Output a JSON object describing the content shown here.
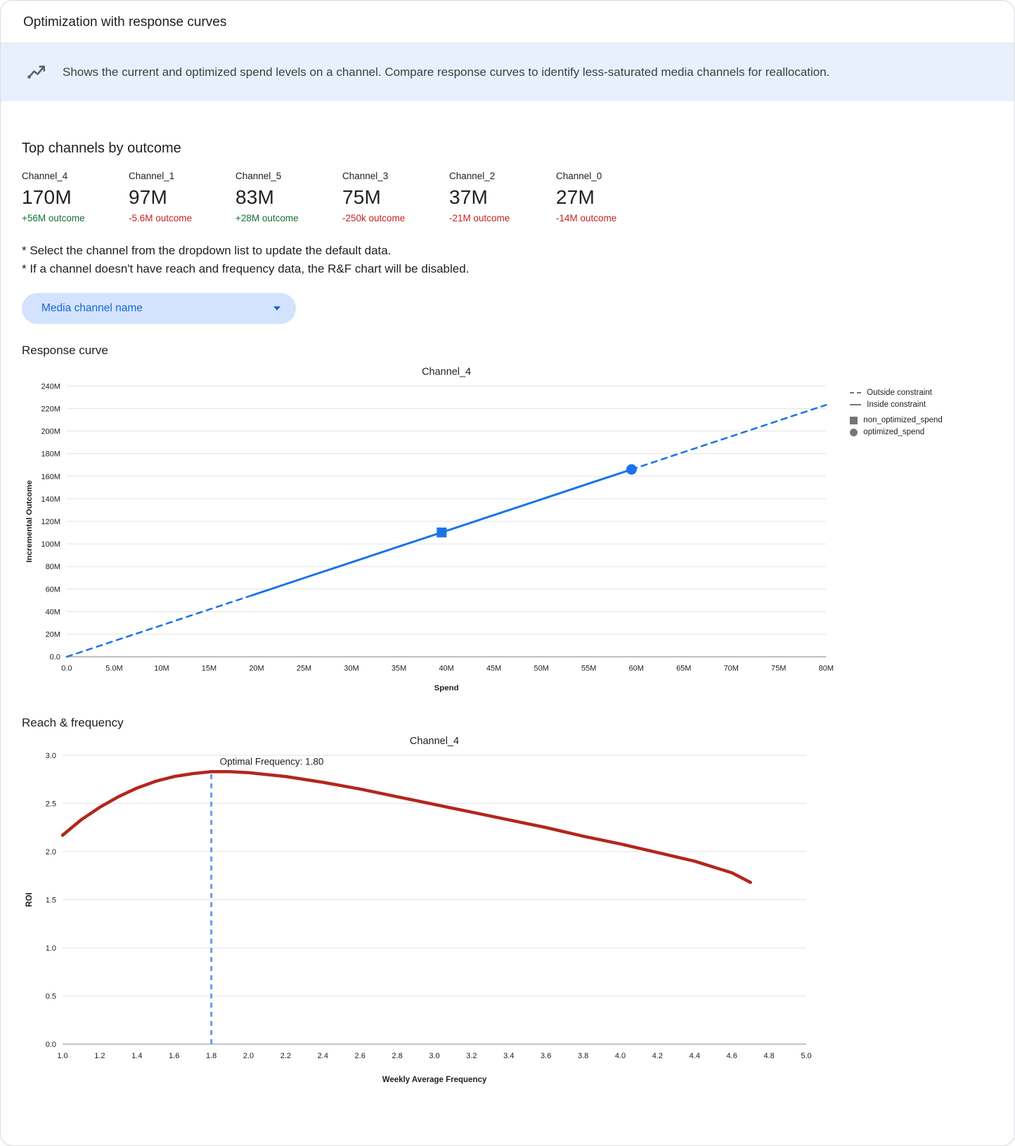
{
  "window": {
    "title": "Optimization with response curves"
  },
  "banner": {
    "text": "Shows the current and optimized spend levels on a channel. Compare response curves to identify less-saturated media channels for reallocation."
  },
  "top_channels": {
    "heading": "Top channels by outcome",
    "channels": [
      {
        "name": "Channel_4",
        "value": "170M",
        "delta": "+56M outcome",
        "direction": "positive"
      },
      {
        "name": "Channel_1",
        "value": "97M",
        "delta": "-5.6M outcome",
        "direction": "negative"
      },
      {
        "name": "Channel_5",
        "value": "83M",
        "delta": "+28M outcome",
        "direction": "positive"
      },
      {
        "name": "Channel_3",
        "value": "75M",
        "delta": "-250k outcome",
        "direction": "negative"
      },
      {
        "name": "Channel_2",
        "value": "37M",
        "delta": "-21M outcome",
        "direction": "negative"
      },
      {
        "name": "Channel_0",
        "value": "27M",
        "delta": "-14M outcome",
        "direction": "negative"
      }
    ]
  },
  "notes": [
    "* Select the channel from the dropdown list to update the default data.",
    "* If a channel doesn't have reach and frequency data, the R&F chart will be disabled."
  ],
  "dropdown": {
    "label": "Media channel name"
  },
  "sections": {
    "response_curve": "Response curve",
    "reach_frequency": "Reach & frequency"
  },
  "chart_data": [
    {
      "id": "response_curve",
      "type": "line",
      "title": "Channel_4",
      "xlabel": "Spend",
      "ylabel": "Incremental Outcome",
      "units": "millions",
      "xlim": [
        0,
        80
      ],
      "ylim": [
        0,
        240
      ],
      "x_ticks": {
        "values": [
          0,
          5,
          10,
          15,
          20,
          25,
          30,
          35,
          40,
          45,
          50,
          55,
          60,
          65,
          70,
          75,
          80
        ],
        "labels": [
          "0.0",
          "5.0M",
          "10M",
          "15M",
          "20M",
          "25M",
          "30M",
          "35M",
          "40M",
          "45M",
          "50M",
          "55M",
          "60M",
          "65M",
          "70M",
          "75M",
          "80M"
        ]
      },
      "y_ticks": {
        "values": [
          0,
          20,
          40,
          60,
          80,
          100,
          120,
          140,
          160,
          180,
          200,
          220,
          240
        ],
        "labels": [
          "0.0",
          "20M",
          "40M",
          "60M",
          "80M",
          "100M",
          "120M",
          "140M",
          "160M",
          "180M",
          "200M",
          "220M",
          "240M"
        ]
      },
      "series": [
        {
          "name": "Outside constraint (below)",
          "style": "dashed",
          "color": "#1a73e8",
          "width": 2.5,
          "x": [
            0,
            5,
            10,
            15,
            19.5
          ],
          "y": [
            0,
            14,
            27.9,
            41.9,
            54.4
          ]
        },
        {
          "name": "Inside constraint",
          "style": "solid",
          "color": "#1a73e8",
          "width": 3,
          "x": [
            19.5,
            25,
            30,
            35,
            39.5,
            45,
            50,
            55,
            59.5
          ],
          "y": [
            54.4,
            69.8,
            83.7,
            97.7,
            110.2,
            125.6,
            139.5,
            153.5,
            166
          ]
        },
        {
          "name": "Outside constraint (above)",
          "style": "dashed",
          "color": "#1a73e8",
          "width": 2.5,
          "x": [
            59.5,
            65,
            70,
            75,
            80
          ],
          "y": [
            166,
            181.4,
            195.3,
            209.3,
            223.2
          ]
        }
      ],
      "markers": [
        {
          "name": "non_optimized_spend",
          "shape": "square",
          "color": "#1a73e8",
          "x": 39.5,
          "y": 110.2
        },
        {
          "name": "optimized_spend",
          "shape": "circle",
          "color": "#1a73e8",
          "x": 59.5,
          "y": 166
        }
      ],
      "legend": [
        {
          "label": "Outside constraint",
          "marker": "dashed-line"
        },
        {
          "label": "Inside constraint",
          "marker": "solid-line"
        },
        {
          "label": "non_optimized_spend",
          "marker": "square"
        },
        {
          "label": "optimized_spend",
          "marker": "circle"
        }
      ]
    },
    {
      "id": "reach_frequency",
      "type": "line",
      "title": "Channel_4",
      "xlabel": "Weekly Average Frequency",
      "ylabel": "ROI",
      "xlim": [
        1.0,
        5.0
      ],
      "ylim": [
        0,
        3.0
      ],
      "x_ticks": {
        "values": [
          1.0,
          1.2,
          1.4,
          1.6,
          1.8,
          2.0,
          2.2,
          2.4,
          2.6,
          2.8,
          3.0,
          3.2,
          3.4,
          3.6,
          3.8,
          4.0,
          4.2,
          4.4,
          4.6,
          4.8,
          5.0
        ],
        "labels": [
          "1.0",
          "1.2",
          "1.4",
          "1.6",
          "1.8",
          "2.0",
          "2.2",
          "2.4",
          "2.6",
          "2.8",
          "3.0",
          "3.2",
          "3.4",
          "3.6",
          "3.8",
          "4.0",
          "4.2",
          "4.4",
          "4.6",
          "4.8",
          "5.0"
        ]
      },
      "y_ticks": {
        "values": [
          0,
          0.5,
          1.0,
          1.5,
          2.0,
          2.5,
          3.0
        ],
        "labels": [
          "0.0",
          "0.5",
          "1.0",
          "1.5",
          "2.0",
          "2.5",
          "3.0"
        ]
      },
      "optimal_frequency": 1.8,
      "vline": {
        "x": 1.8,
        "y_top": 2.82,
        "color": "#669df6",
        "label": "Optimal Frequency: 1.80",
        "label_y": 2.9
      },
      "series": [
        {
          "name": "ROI",
          "style": "solid",
          "color": "#b3261e",
          "width": 4.5,
          "x": [
            1.0,
            1.1,
            1.2,
            1.3,
            1.4,
            1.5,
            1.6,
            1.7,
            1.8,
            1.9,
            2.0,
            2.2,
            2.4,
            2.6,
            2.8,
            3.0,
            3.2,
            3.4,
            3.6,
            3.8,
            4.0,
            4.2,
            4.4,
            4.6,
            4.7
          ],
          "y": [
            2.17,
            2.33,
            2.46,
            2.57,
            2.66,
            2.73,
            2.78,
            2.81,
            2.83,
            2.83,
            2.82,
            2.78,
            2.72,
            2.65,
            2.57,
            2.49,
            2.41,
            2.33,
            2.25,
            2.16,
            2.08,
            1.99,
            1.9,
            1.78,
            1.68
          ]
        }
      ]
    }
  ]
}
